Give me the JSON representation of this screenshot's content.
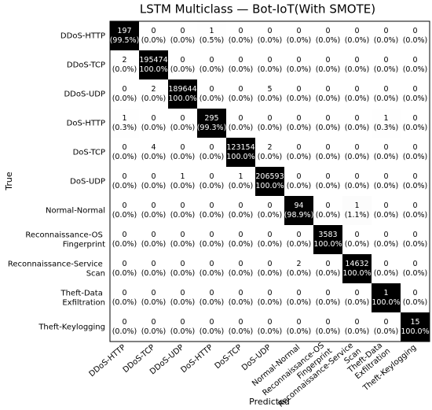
{
  "chart_data": {
    "type": "heatmap",
    "title": "LSTM Multiclass — Bot-IoT(With SMOTE)",
    "xlabel": "Predicted",
    "ylabel": "True",
    "colormap": "Greys",
    "categories": [
      "DDoS-HTTP",
      "DDoS-TCP",
      "DDoS-UDP",
      "DoS-HTTP",
      "DoS-TCP",
      "DoS-UDP",
      "Normal-Normal",
      "Reconnaissance-OS Fingerprint",
      "Reconnaissance-Service Scan",
      "Theft-Data Exfiltration",
      "Theft-Keylogging"
    ],
    "values": [
      [
        197,
        0,
        0,
        1,
        0,
        0,
        0,
        0,
        0,
        0,
        0
      ],
      [
        2,
        195474,
        0,
        0,
        0,
        0,
        0,
        0,
        0,
        0,
        0
      ],
      [
        0,
        2,
        189644,
        0,
        0,
        5,
        0,
        0,
        0,
        0,
        0
      ],
      [
        1,
        0,
        0,
        295,
        0,
        0,
        0,
        0,
        0,
        1,
        0
      ],
      [
        0,
        4,
        0,
        0,
        123154,
        2,
        0,
        0,
        0,
        0,
        0
      ],
      [
        0,
        0,
        1,
        0,
        1,
        206593,
        0,
        0,
        0,
        0,
        0
      ],
      [
        0,
        0,
        0,
        0,
        0,
        0,
        94,
        0,
        1,
        0,
        0
      ],
      [
        0,
        0,
        0,
        0,
        0,
        0,
        0,
        3583,
        0,
        0,
        0
      ],
      [
        0,
        0,
        0,
        0,
        0,
        0,
        2,
        0,
        14632,
        0,
        0
      ],
      [
        0,
        0,
        0,
        0,
        0,
        0,
        0,
        0,
        0,
        1,
        0
      ],
      [
        0,
        0,
        0,
        0,
        0,
        0,
        0,
        0,
        0,
        0,
        15
      ]
    ],
    "percentages": [
      [
        99.5,
        0,
        0,
        0.5,
        0,
        0,
        0,
        0,
        0,
        0,
        0
      ],
      [
        0,
        100,
        0,
        0,
        0,
        0,
        0,
        0,
        0,
        0,
        0
      ],
      [
        0,
        0,
        100,
        0,
        0,
        0,
        0,
        0,
        0,
        0,
        0
      ],
      [
        0.3,
        0,
        0,
        99.3,
        0,
        0,
        0,
        0,
        0,
        0.3,
        0
      ],
      [
        0,
        0,
        0,
        0,
        100,
        0,
        0,
        0,
        0,
        0,
        0
      ],
      [
        0,
        0,
        0,
        0,
        0,
        100,
        0,
        0,
        0,
        0,
        0
      ],
      [
        0,
        0,
        0,
        0,
        0,
        0,
        98.9,
        0,
        1.1,
        0,
        0
      ],
      [
        0,
        0,
        0,
        0,
        0,
        0,
        0,
        100,
        0,
        0,
        0
      ],
      [
        0,
        0,
        0,
        0,
        0,
        0,
        0,
        0,
        100,
        0,
        0
      ],
      [
        0,
        0,
        0,
        0,
        0,
        0,
        0,
        0,
        0,
        100,
        0
      ],
      [
        0,
        0,
        0,
        0,
        0,
        0,
        0,
        0,
        0,
        0,
        100
      ]
    ],
    "percentage_labels": [
      [
        "(99.5%)",
        "(0.0%)",
        "(0.0%)",
        "(0.5%)",
        "(0.0%)",
        "(0.0%)",
        "(0.0%)",
        "(0.0%)",
        "(0.0%)",
        "(0.0%)",
        "(0.0%)"
      ],
      [
        "(0.0%)",
        "(100.0%)",
        "(0.0%)",
        "(0.0%)",
        "(0.0%)",
        "(0.0%)",
        "(0.0%)",
        "(0.0%)",
        "(0.0%)",
        "(0.0%)",
        "(0.0%)"
      ],
      [
        "(0.0%)",
        "(0.0%)",
        "(100.0%)",
        "(0.0%)",
        "(0.0%)",
        "(0.0%)",
        "(0.0%)",
        "(0.0%)",
        "(0.0%)",
        "(0.0%)",
        "(0.0%)"
      ],
      [
        "(0.3%)",
        "(0.0%)",
        "(0.0%)",
        "(99.3%)",
        "(0.0%)",
        "(0.0%)",
        "(0.0%)",
        "(0.0%)",
        "(0.0%)",
        "(0.3%)",
        "(0.0%)"
      ],
      [
        "(0.0%)",
        "(0.0%)",
        "(0.0%)",
        "(0.0%)",
        "(100.0%)",
        "(0.0%)",
        "(0.0%)",
        "(0.0%)",
        "(0.0%)",
        "(0.0%)",
        "(0.0%)"
      ],
      [
        "(0.0%)",
        "(0.0%)",
        "(0.0%)",
        "(0.0%)",
        "(0.0%)",
        "(100.0%)",
        "(0.0%)",
        "(0.0%)",
        "(0.0%)",
        "(0.0%)",
        "(0.0%)"
      ],
      [
        "(0.0%)",
        "(0.0%)",
        "(0.0%)",
        "(0.0%)",
        "(0.0%)",
        "(0.0%)",
        "(98.9%)",
        "(0.0%)",
        "(1.1%)",
        "(0.0%)",
        "(0.0%)"
      ],
      [
        "(0.0%)",
        "(0.0%)",
        "(0.0%)",
        "(0.0%)",
        "(0.0%)",
        "(0.0%)",
        "(0.0%)",
        "(100.0%)",
        "(0.0%)",
        "(0.0%)",
        "(0.0%)"
      ],
      [
        "(0.0%)",
        "(0.0%)",
        "(0.0%)",
        "(0.0%)",
        "(0.0%)",
        "(0.0%)",
        "(0.0%)",
        "(0.0%)",
        "(100.0%)",
        "(0.0%)",
        "(0.0%)"
      ],
      [
        "(0.0%)",
        "(0.0%)",
        "(0.0%)",
        "(0.0%)",
        "(0.0%)",
        "(0.0%)",
        "(0.0%)",
        "(0.0%)",
        "(0.0%)",
        "(100.0%)",
        "(0.0%)"
      ],
      [
        "(0.0%)",
        "(0.0%)",
        "(0.0%)",
        "(0.0%)",
        "(0.0%)",
        "(0.0%)",
        "(0.0%)",
        "(0.0%)",
        "(0.0%)",
        "(0.0%)",
        "(100.0%)"
      ]
    ]
  }
}
